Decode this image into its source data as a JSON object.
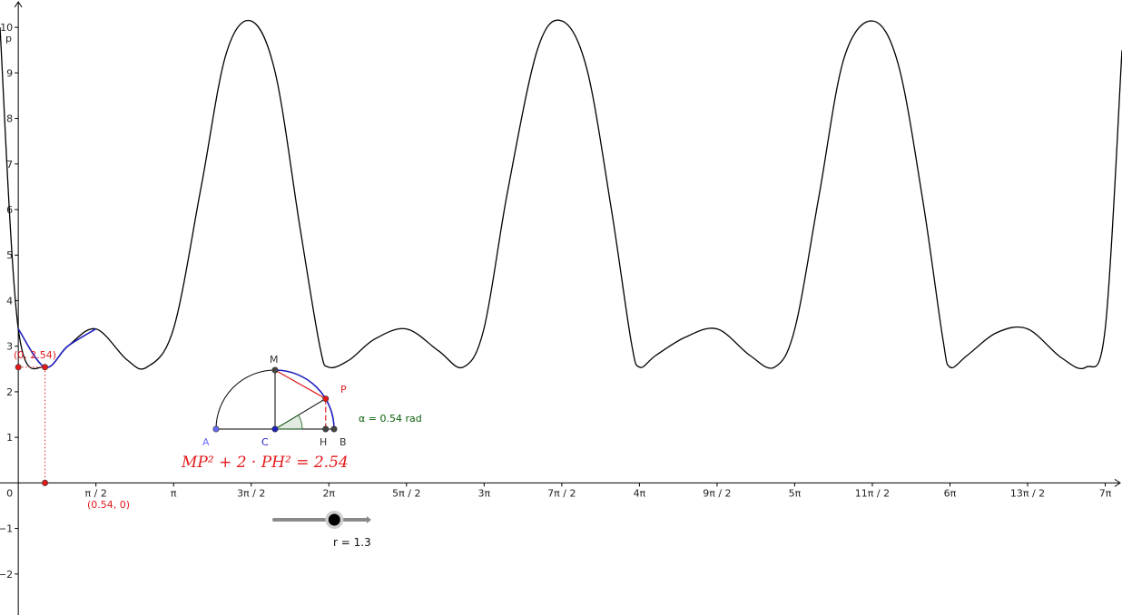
{
  "chart_data": {
    "type": "line",
    "xlabel": "",
    "ylabel": "",
    "x_range": [
      -0.37,
      22.33
    ],
    "y_range": [
      -2.9,
      10.6
    ],
    "grid": false,
    "x_ticks": [
      {
        "value": 1.5708,
        "label": "π / 2"
      },
      {
        "value": 3.1416,
        "label": "π"
      },
      {
        "value": 4.7124,
        "label": "3π / 2"
      },
      {
        "value": 6.2832,
        "label": "2π"
      },
      {
        "value": 7.854,
        "label": "5π / 2"
      },
      {
        "value": 9.4248,
        "label": "3π"
      },
      {
        "value": 10.9956,
        "label": "7π / 2"
      },
      {
        "value": 12.5664,
        "label": "4π"
      },
      {
        "value": 14.1372,
        "label": "9π / 2"
      },
      {
        "value": 15.708,
        "label": "5π"
      },
      {
        "value": 17.2788,
        "label": "11π / 2"
      },
      {
        "value": 18.8496,
        "label": "6π"
      },
      {
        "value": 20.4204,
        "label": "13π / 2"
      },
      {
        "value": 21.9911,
        "label": "7π"
      }
    ],
    "y_ticks": [
      {
        "value": -2,
        "label": "−2"
      },
      {
        "value": -1,
        "label": "−1"
      },
      {
        "value": 0,
        "label": "0"
      },
      {
        "value": 1,
        "label": "1"
      },
      {
        "value": 2,
        "label": "2"
      },
      {
        "value": 3,
        "label": "3"
      },
      {
        "value": 4,
        "label": "4"
      },
      {
        "value": 5,
        "label": "5"
      },
      {
        "value": 6,
        "label": "6"
      },
      {
        "value": 7,
        "label": "7"
      },
      {
        "value": 8,
        "label": "8"
      },
      {
        "value": 9,
        "label": "9"
      },
      {
        "value": 10,
        "label": "10"
      }
    ],
    "series": [
      {
        "name": "p",
        "color": "#000000",
        "function": "MP^2 + 2*PH^2 with r = 1.3",
        "x": [
          -0.37,
          0,
          0.54,
          1.0,
          1.57,
          2.2,
          2.6,
          3.14,
          3.7,
          4.2,
          4.71,
          5.2,
          5.7,
          6.1,
          6.28,
          6.7,
          7.2,
          7.85,
          8.5,
          9.0,
          9.42,
          9.9,
          10.5,
          11.0,
          11.5,
          12.0,
          12.4,
          12.57,
          12.9,
          13.5,
          14.14,
          14.8,
          15.3,
          15.71,
          16.2,
          16.7,
          17.28,
          17.8,
          18.3,
          18.7,
          18.85,
          19.2,
          19.8,
          20.42,
          21.1,
          21.6,
          21.99,
          22.33
        ],
        "y": [
          10.0,
          3.38,
          2.54,
          3.0,
          3.38,
          2.7,
          2.54,
          3.38,
          6.5,
          9.4,
          10.14,
          9.0,
          5.6,
          3.0,
          2.54,
          2.7,
          3.15,
          3.38,
          2.9,
          2.54,
          3.38,
          6.4,
          9.5,
          10.14,
          9.1,
          6.0,
          3.1,
          2.54,
          2.8,
          3.2,
          3.38,
          2.8,
          2.54,
          3.38,
          6.3,
          9.3,
          10.14,
          9.2,
          6.2,
          3.2,
          2.54,
          2.8,
          3.3,
          3.38,
          2.75,
          2.54,
          3.38,
          9.5
        ]
      }
    ],
    "highlight": {
      "color": "#1f1fbf",
      "x_from": 0,
      "x_to": 1.57
    }
  },
  "labels": {
    "series_name": "p",
    "point_y_intercept": "(0, 2.54)",
    "point_x_value": "(0.54, 0)",
    "formula": "MP² + 2 · PH² = 2.54",
    "angle_label": "α = 0.54 rad",
    "slider_label": "r = 1.3",
    "point_names": {
      "A": "A",
      "C": "C",
      "H": "H",
      "B": "B",
      "M": "M",
      "P": "P"
    }
  },
  "values": {
    "alpha": 0.54,
    "r": 1.3,
    "r_min": 0,
    "r_max": 2,
    "value_at_alpha": 2.54
  },
  "colors": {
    "curve": "#000000",
    "highlight_arc": "#1f1fbf",
    "point_red": "#e31a1c",
    "point_blue": "#1f1fbf",
    "point_light_blue": "#6b6bff",
    "angle_green": "#0b5e0b",
    "slider": "#888888"
  }
}
